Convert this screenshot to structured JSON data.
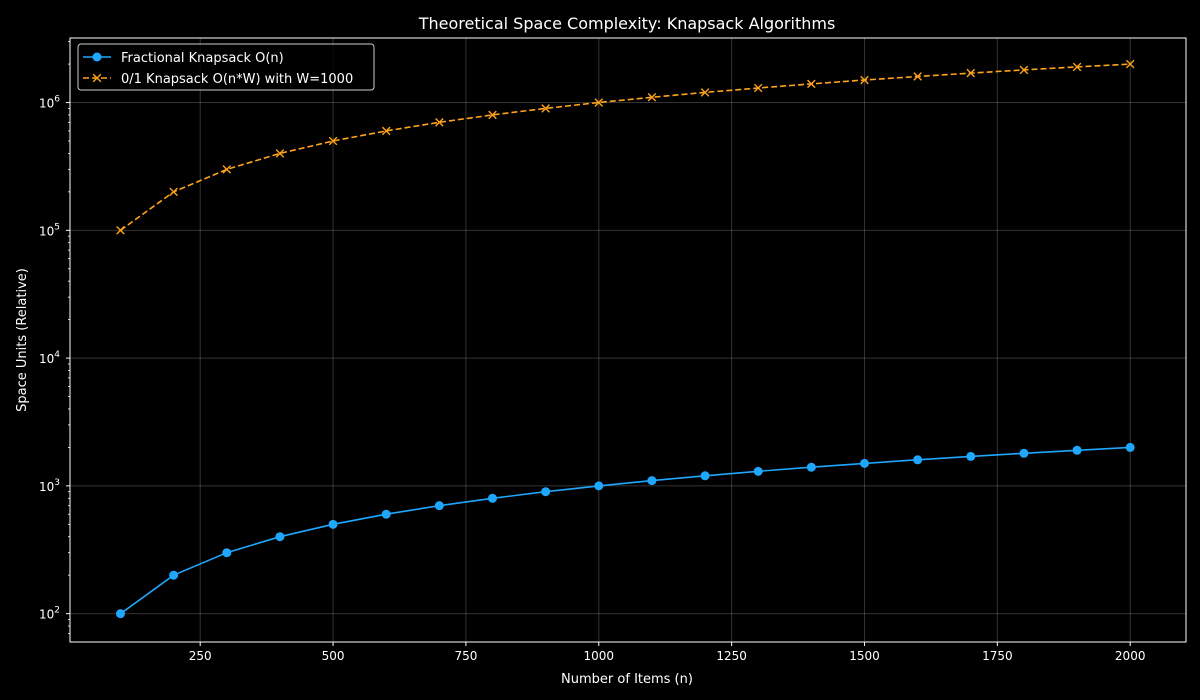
{
  "chart_data": {
    "type": "line",
    "title": "Theoretical Space Complexity: Knapsack Algorithms",
    "xlabel": "Number of Items (n)",
    "ylabel": "Space Units (Relative)",
    "x": [
      100,
      200,
      300,
      400,
      500,
      600,
      700,
      800,
      900,
      1000,
      1100,
      1200,
      1300,
      1400,
      1500,
      1600,
      1700,
      1800,
      1900,
      2000
    ],
    "xlim": [
      5,
      2105
    ],
    "ylim": [
      60,
      3200000
    ],
    "yscale": "log",
    "grid": true,
    "legend_position": "top-left",
    "xticks": [
      "250",
      "500",
      "750",
      "1000",
      "1250",
      "1500",
      "1750",
      "2000"
    ],
    "yticks": [
      {
        "base": "10",
        "exp": "2"
      },
      {
        "base": "10",
        "exp": "3"
      },
      {
        "base": "10",
        "exp": "4"
      },
      {
        "base": "10",
        "exp": "5"
      },
      {
        "base": "10",
        "exp": "6"
      }
    ],
    "series": [
      {
        "name": "Fractional Knapsack O(n)",
        "color": "#1ea7fd",
        "marker": "circle",
        "line_style": "solid",
        "values": [
          100,
          200,
          300,
          400,
          500,
          600,
          700,
          800,
          900,
          1000,
          1100,
          1200,
          1300,
          1400,
          1500,
          1600,
          1700,
          1800,
          1900,
          2000
        ]
      },
      {
        "name": "0/1 Knapsack O(n*W) with W=1000",
        "color": "#ffa31a",
        "marker": "x",
        "line_style": "dashed",
        "values": [
          100000,
          200000,
          300000,
          400000,
          500000,
          600000,
          700000,
          800000,
          900000,
          1000000,
          1100000,
          1200000,
          1300000,
          1400000,
          1500000,
          1600000,
          1700000,
          1800000,
          1900000,
          2000000
        ]
      }
    ]
  }
}
